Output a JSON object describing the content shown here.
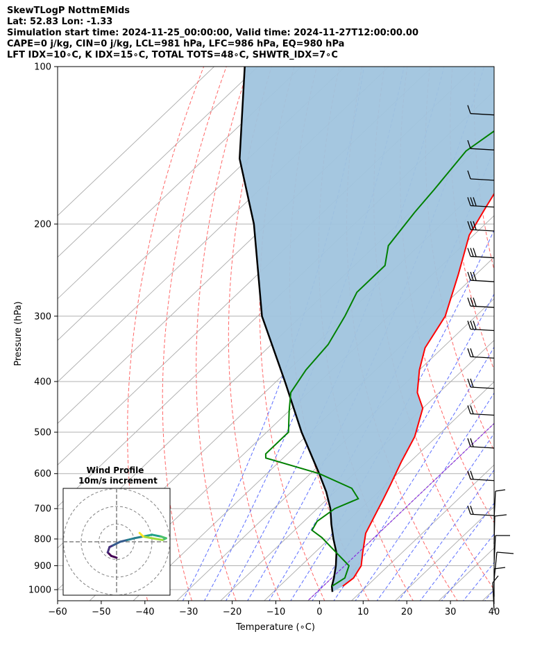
{
  "header": {
    "title": "SkewTLogP NottmEMids",
    "location": "Lat: 52.83   Lon: -1.33",
    "times": "Simulation start time: 2024-11-25_00:00:00, Valid time: 2024-11-27T12:00:00.00",
    "indices1": "CAPE=0 j/kg, CIN=0 j/kg, LCL=981 hPa, LFC=986 hPa, EQ=980 hPa",
    "indices2": "LFT IDX=10∘C, K IDX=15∘C, TOTAL TOTS=48∘C, SHWTR_IDX=7∘C"
  },
  "chart_data": {
    "type": "line",
    "subtype": "skew-t log-p",
    "xlabel": "Temperature (∘C)",
    "ylabel": "Pressure (hPa)",
    "xlim": [
      -60,
      40
    ],
    "ylim": [
      1050,
      100
    ],
    "y_scale": "log",
    "x_ticks": [
      -60,
      -50,
      -40,
      -30,
      -20,
      -10,
      0,
      10,
      20,
      30,
      40
    ],
    "x_tick_labels": [
      "−60",
      "−50",
      "−40",
      "−30",
      "−20",
      "−10",
      "0",
      "10",
      "20",
      "30",
      "40"
    ],
    "y_ticks": [
      1000,
      900,
      800,
      700,
      600,
      500,
      400,
      300,
      200,
      100
    ],
    "y_tick_labels": [
      "1000",
      "900",
      "800",
      "700",
      "600",
      "500",
      "400",
      "300",
      "200",
      "100"
    ],
    "grid": true,
    "series": [
      {
        "role": "temperature",
        "color": "#ff0000",
        "points": [
          [
            4.5,
            985
          ],
          [
            5,
            950
          ],
          [
            3.8,
            900
          ],
          [
            1,
            850
          ],
          [
            -3,
            780
          ],
          [
            -6,
            700
          ],
          [
            -7,
            675
          ],
          [
            -9,
            630
          ],
          [
            -12,
            570
          ],
          [
            -15,
            510
          ],
          [
            -20,
            450
          ],
          [
            -25,
            420
          ],
          [
            -30,
            380
          ],
          [
            -34,
            345
          ],
          [
            -37,
            300
          ],
          [
            -44,
            250
          ],
          [
            -51,
            210
          ],
          [
            -54,
            185
          ],
          [
            -57,
            162
          ],
          [
            -62,
            143
          ],
          [
            -64,
            127
          ],
          [
            -64,
            112
          ],
          [
            -63,
            100
          ]
        ]
      },
      {
        "role": "dewpoint",
        "color": "#008000",
        "points": [
          [
            2,
            985
          ],
          [
            3,
            950
          ],
          [
            1,
            900
          ],
          [
            -5,
            850
          ],
          [
            -12,
            795
          ],
          [
            -16,
            770
          ],
          [
            -17,
            740
          ],
          [
            -16,
            700
          ],
          [
            -13,
            670
          ],
          [
            -17,
            640
          ],
          [
            -28,
            600
          ],
          [
            -44,
            560
          ],
          [
            -45,
            550
          ],
          [
            -45,
            500
          ],
          [
            -50,
            455
          ],
          [
            -54,
            420
          ],
          [
            -56,
            380
          ],
          [
            -57,
            340
          ],
          [
            -60,
            300
          ],
          [
            -63,
            270
          ],
          [
            -63,
            240
          ],
          [
            -67,
            220
          ],
          [
            -69,
            190
          ],
          [
            -70,
            172
          ],
          [
            -72,
            145
          ],
          [
            -65,
            100
          ]
        ]
      },
      {
        "role": "parcel",
        "color": "#000000",
        "points": [
          [
            3.5,
            1010
          ],
          [
            2,
            985
          ],
          [
            0.5,
            950
          ],
          [
            -2,
            900
          ],
          [
            -5,
            850
          ],
          [
            -9,
            800
          ],
          [
            -13,
            750
          ],
          [
            -17,
            700
          ],
          [
            -22,
            650
          ],
          [
            -28,
            600
          ],
          [
            -42,
            500
          ],
          [
            -58,
            400
          ],
          [
            -79,
            300
          ],
          [
            -103,
            200
          ],
          [
            -122,
            150
          ],
          [
            -143,
            100
          ]
        ]
      }
    ],
    "shaded_region": {
      "between": [
        "parcel",
        "temperature"
      ],
      "fill": "#a0c4de"
    },
    "reference_lines": {
      "dry_adiabats_color": "#ff0000",
      "moist_adiabats_color": "#0000ff",
      "mixing_ratio_color": "#808080",
      "freezing_isotherm_color": "#800080"
    },
    "wind_barbs_color": "#000000",
    "hodograph": {
      "title": "Wind Profile",
      "subtitle": "10m/s increment",
      "type": "line",
      "colormap": "viridis",
      "u": [
        0,
        -3,
        -5,
        -4,
        -2,
        2,
        6,
        10,
        15,
        20,
        25,
        28,
        26,
        20,
        15,
        13
      ],
      "v": [
        -9,
        -8,
        -6,
        -3,
        -2,
        0,
        1,
        2,
        3,
        4,
        3,
        2,
        1,
        2,
        3,
        5
      ]
    }
  }
}
